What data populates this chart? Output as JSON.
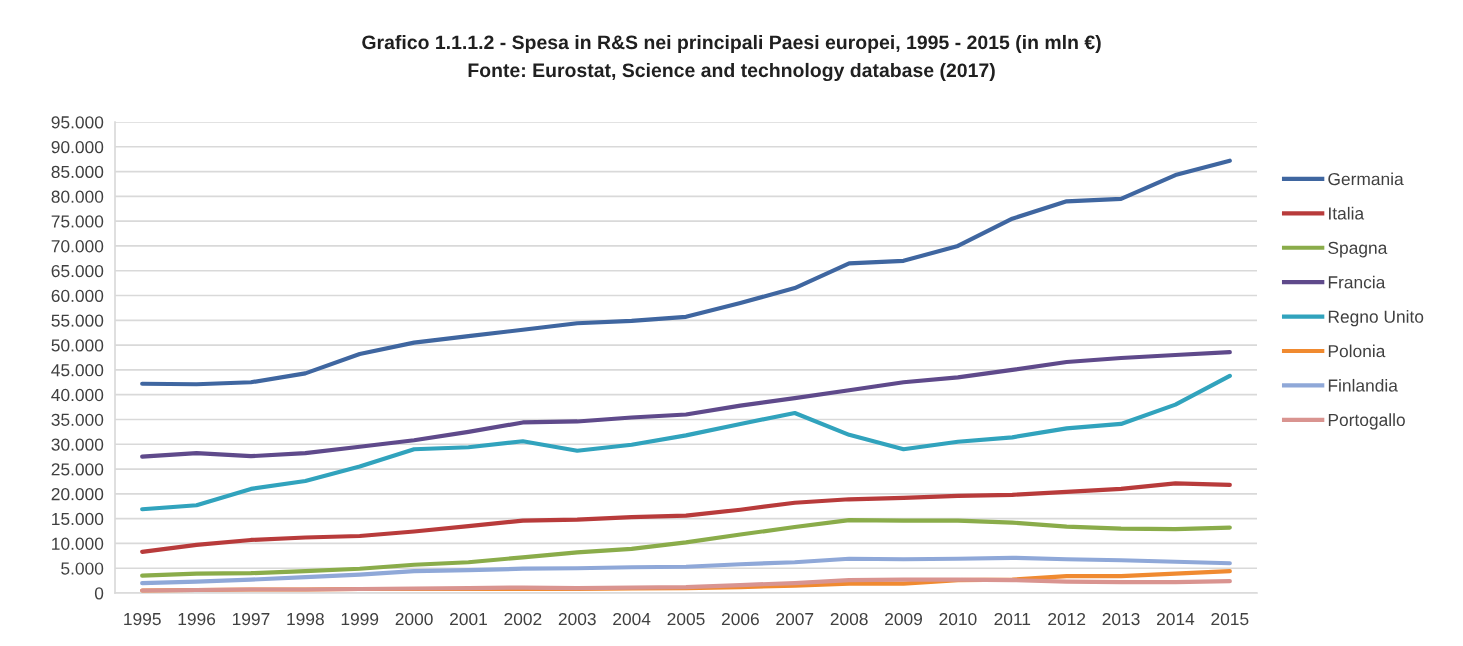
{
  "chart_data": {
    "type": "line",
    "title": "Grafico 1.1.1.2 - Spesa in R&S nei principali Paesi europei, 1995 - 2015 (in mln €)",
    "annotations": [
      "Fonte: Eurostat, Science and technology database (2017)"
    ],
    "categories": [
      "1995",
      "1996",
      "1997",
      "1998",
      "1999",
      "2000",
      "2001",
      "2002",
      "2003",
      "2004",
      "2005",
      "2006",
      "2007",
      "2008",
      "2009",
      "2010",
      "2011",
      "2012",
      "2013",
      "2014",
      "2015"
    ],
    "series": [
      {
        "name": "Germania",
        "color": "#3f66a0",
        "values": [
          42200,
          42100,
          42500,
          44300,
          48200,
          50500,
          51800,
          53100,
          54400,
          54900,
          55700,
          58500,
          61500,
          66500,
          67000,
          70000,
          75500,
          79000,
          79500,
          84300,
          87200
        ]
      },
      {
        "name": "Italia",
        "color": "#b83b3b",
        "values": [
          8300,
          9700,
          10700,
          11200,
          11500,
          12400,
          13500,
          14600,
          14800,
          15300,
          15600,
          16800,
          18200,
          18900,
          19200,
          19600,
          19800,
          20400,
          21000,
          22100,
          21800
        ]
      },
      {
        "name": "Spagna",
        "color": "#8aac4a",
        "values": [
          3500,
          3900,
          4000,
          4400,
          4900,
          5700,
          6200,
          7200,
          8200,
          8900,
          10200,
          11800,
          13300,
          14700,
          14600,
          14600,
          14200,
          13400,
          13000,
          12900,
          13200
        ]
      },
      {
        "name": "Francia",
        "color": "#5f4a8b",
        "values": [
          27500,
          28200,
          27600,
          28200,
          29500,
          30800,
          32500,
          34400,
          34600,
          35400,
          36000,
          37800,
          39300,
          40900,
          42500,
          43500,
          45000,
          46600,
          47400,
          48000,
          48600
        ]
      },
      {
        "name": "Regno Unito",
        "color": "#31a3bd",
        "values": [
          16900,
          17700,
          21000,
          22600,
          25500,
          29000,
          29400,
          30600,
          28700,
          29900,
          31800,
          34100,
          36300,
          31900,
          29000,
          30500,
          31400,
          33200,
          34100,
          38000,
          43800
        ]
      },
      {
        "name": "Polonia",
        "color": "#f08a30",
        "values": [
          500,
          600,
          700,
          700,
          800,
          800,
          800,
          800,
          800,
          900,
          1000,
          1200,
          1500,
          1900,
          1900,
          2600,
          2700,
          3400,
          3400,
          3900,
          4400
        ]
      },
      {
        "name": "Finlandia",
        "color": "#8fa8d8",
        "values": [
          2000,
          2300,
          2700,
          3200,
          3700,
          4400,
          4600,
          4900,
          5000,
          5200,
          5300,
          5800,
          6200,
          6900,
          6800,
          6900,
          7100,
          6800,
          6600,
          6300,
          6000
        ]
      },
      {
        "name": "Portogallo",
        "color": "#d99490",
        "values": [
          500,
          600,
          700,
          700,
          800,
          900,
          1000,
          1100,
          1000,
          1100,
          1200,
          1600,
          2000,
          2600,
          2700,
          2700,
          2600,
          2300,
          2200,
          2200,
          2400
        ]
      }
    ],
    "ylim": [
      0,
      95000
    ],
    "yticks": [
      {
        "value": 0,
        "label": "0"
      },
      {
        "value": 5000,
        "label": "5.000"
      },
      {
        "value": 10000,
        "label": "10.000"
      },
      {
        "value": 15000,
        "label": "15.000"
      },
      {
        "value": 20000,
        "label": "20.000"
      },
      {
        "value": 25000,
        "label": "25.000"
      },
      {
        "value": 30000,
        "label": "30.000"
      },
      {
        "value": 35000,
        "label": "35.000"
      },
      {
        "value": 40000,
        "label": "40.000"
      },
      {
        "value": 45000,
        "label": "45.000"
      },
      {
        "value": 50000,
        "label": "50.000"
      },
      {
        "value": 55000,
        "label": "55.000"
      },
      {
        "value": 60000,
        "label": "60.000"
      },
      {
        "value": 65000,
        "label": "65.000"
      },
      {
        "value": 70000,
        "label": "70.000"
      },
      {
        "value": 75000,
        "label": "75.000"
      },
      {
        "value": 80000,
        "label": "80.000"
      },
      {
        "value": 85000,
        "label": "85.000"
      },
      {
        "value": 90000,
        "label": "90.000"
      },
      {
        "value": 95000,
        "label": "95.000"
      }
    ],
    "grid": "y",
    "legend": "right",
    "marker": "none",
    "line_style": "solid"
  }
}
